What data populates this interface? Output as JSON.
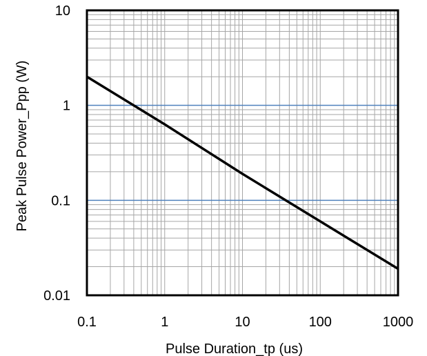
{
  "chart_data": {
    "type": "line",
    "title": "",
    "xlabel": "Pulse Duration_tp (us)",
    "ylabel": "Peak Pulse Power_Ppp (W)",
    "x_scale": "log",
    "y_scale": "log",
    "xlim": [
      0.1,
      1000
    ],
    "ylim": [
      0.01,
      10
    ],
    "x_ticks": [
      "0.1",
      "1",
      "10",
      "100",
      "1000"
    ],
    "y_ticks": [
      "0.01",
      "0.1",
      "1",
      "10"
    ],
    "grid": true,
    "highlight_gridlines_y": [
      0.1,
      1
    ],
    "series": [
      {
        "x": [
          0.1,
          1,
          10,
          100,
          1000
        ],
        "y": [
          2.0,
          0.63,
          0.19,
          0.06,
          0.019
        ]
      }
    ],
    "colors": {
      "line": "#000000",
      "minor_grid": "#a6a6a6",
      "highlight_grid": "#4f81bd",
      "frame": "#000000"
    }
  }
}
